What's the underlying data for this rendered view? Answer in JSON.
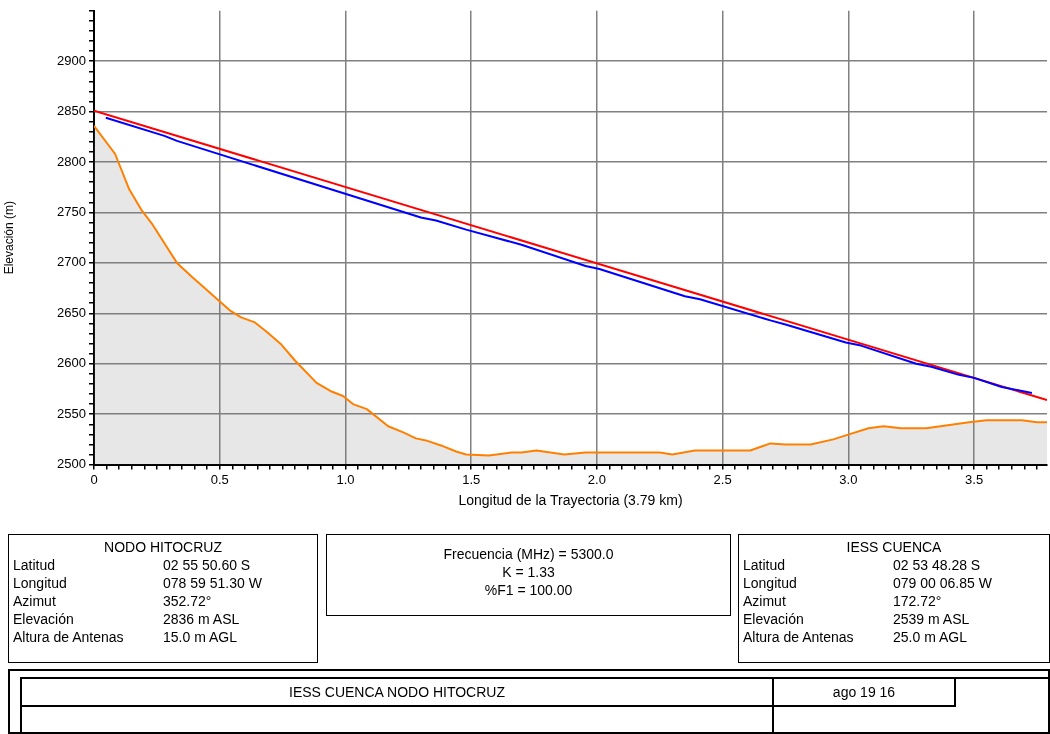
{
  "chart_data": {
    "type": "line",
    "xlabel": "Longitud de la Trayectoria (3.79 km)",
    "ylabel": "Elevación (m)",
    "grid": true,
    "legend": false,
    "xlim": [
      0,
      3.79
    ],
    "ylim": [
      2500,
      2950
    ],
    "xticks": [
      0,
      {
        "value": 0.05,
        "label": null
      },
      {
        "value": 0.1,
        "label": null
      },
      {
        "value": 0.15,
        "label": null
      },
      {
        "value": 0.2,
        "label": null
      },
      {
        "value": 0.25,
        "label": null
      },
      {
        "value": 0.3,
        "label": null
      },
      {
        "value": 0.35,
        "label": null
      },
      {
        "value": 0.4,
        "label": null
      },
      {
        "value": 0.45,
        "label": null
      },
      0.5,
      {
        "value": 0.55,
        "label": null
      },
      {
        "value": 0.6,
        "label": null
      },
      {
        "value": 0.65,
        "label": null
      },
      {
        "value": 0.7,
        "label": null
      },
      {
        "value": 0.75,
        "label": null
      },
      {
        "value": 0.8,
        "label": null
      },
      {
        "value": 0.85,
        "label": null
      },
      {
        "value": 0.9,
        "label": null
      },
      {
        "value": 0.95,
        "label": null
      },
      {
        "value": 1,
        "label": "1.0"
      },
      {
        "value": 1.05,
        "label": null
      },
      {
        "value": 1.1,
        "label": null
      },
      {
        "value": 1.15,
        "label": null
      },
      {
        "value": 1.2,
        "label": null
      },
      {
        "value": 1.25,
        "label": null
      },
      {
        "value": 1.3,
        "label": null
      },
      {
        "value": 1.35,
        "label": null
      },
      {
        "value": 1.4,
        "label": null
      },
      {
        "value": 1.45,
        "label": null
      },
      1.5,
      {
        "value": 1.55,
        "label": null
      },
      {
        "value": 1.6,
        "label": null
      },
      {
        "value": 1.65,
        "label": null
      },
      {
        "value": 1.7,
        "label": null
      },
      {
        "value": 1.75,
        "label": null
      },
      {
        "value": 1.8,
        "label": null
      },
      {
        "value": 1.85,
        "label": null
      },
      {
        "value": 1.9,
        "label": null
      },
      {
        "value": 1.95,
        "label": null
      },
      {
        "value": 2,
        "label": "2.0"
      },
      {
        "value": 2.05,
        "label": null
      },
      {
        "value": 2.1,
        "label": null
      },
      {
        "value": 2.15,
        "label": null
      },
      {
        "value": 2.2,
        "label": null
      },
      {
        "value": 2.25,
        "label": null
      },
      {
        "value": 2.3,
        "label": null
      },
      {
        "value": 2.35,
        "label": null
      },
      {
        "value": 2.4,
        "label": null
      },
      {
        "value": 2.45,
        "label": null
      },
      2.5,
      {
        "value": 2.55,
        "label": null
      },
      {
        "value": 2.6,
        "label": null
      },
      {
        "value": 2.65,
        "label": null
      },
      {
        "value": 2.7,
        "label": null
      },
      {
        "value": 2.75,
        "label": null
      },
      {
        "value": 2.8,
        "label": null
      },
      {
        "value": 2.85,
        "label": null
      },
      {
        "value": 2.9,
        "label": null
      },
      {
        "value": 2.95,
        "label": null
      },
      {
        "value": 3,
        "label": "3.0"
      },
      {
        "value": 3.05,
        "label": null
      },
      {
        "value": 3.1,
        "label": null
      },
      {
        "value": 3.15,
        "label": null
      },
      {
        "value": 3.2,
        "label": null
      },
      {
        "value": 3.25,
        "label": null
      },
      {
        "value": 3.3,
        "label": null
      },
      {
        "value": 3.35,
        "label": null
      },
      {
        "value": 3.4,
        "label": null
      },
      {
        "value": 3.45,
        "label": null
      },
      3.5,
      {
        "value": 3.55,
        "label": null
      },
      {
        "value": 3.6,
        "label": null
      },
      {
        "value": 3.65,
        "label": null
      },
      {
        "value": 3.7,
        "label": null
      },
      {
        "value": 3.75,
        "label": null
      }
    ],
    "yticks": [
      2500,
      {
        "value": 2510,
        "label": null
      },
      {
        "value": 2520,
        "label": null
      },
      {
        "value": 2530,
        "label": null
      },
      {
        "value": 2540,
        "label": null
      },
      2550,
      {
        "value": 2560,
        "label": null
      },
      {
        "value": 2570,
        "label": null
      },
      {
        "value": 2580,
        "label": null
      },
      {
        "value": 2590,
        "label": null
      },
      2600,
      {
        "value": 2610,
        "label": null
      },
      {
        "value": 2620,
        "label": null
      },
      {
        "value": 2630,
        "label": null
      },
      {
        "value": 2640,
        "label": null
      },
      2650,
      {
        "value": 2660,
        "label": null
      },
      {
        "value": 2670,
        "label": null
      },
      {
        "value": 2680,
        "label": null
      },
      {
        "value": 2690,
        "label": null
      },
      2700,
      {
        "value": 2710,
        "label": null
      },
      {
        "value": 2720,
        "label": null
      },
      {
        "value": 2730,
        "label": null
      },
      {
        "value": 2740,
        "label": null
      },
      2750,
      {
        "value": 2760,
        "label": null
      },
      {
        "value": 2770,
        "label": null
      },
      {
        "value": 2780,
        "label": null
      },
      {
        "value": 2790,
        "label": null
      },
      2800,
      {
        "value": 2810,
        "label": null
      },
      {
        "value": 2820,
        "label": null
      },
      {
        "value": 2830,
        "label": null
      },
      {
        "value": 2840,
        "label": null
      },
      2850,
      {
        "value": 2860,
        "label": null
      },
      {
        "value": 2870,
        "label": null
      },
      {
        "value": 2880,
        "label": null
      },
      {
        "value": 2890,
        "label": null
      },
      2900,
      {
        "value": 2910,
        "label": null
      },
      {
        "value": 2920,
        "label": null
      },
      {
        "value": 2930,
        "label": null
      },
      {
        "value": 2940,
        "label": null
      },
      {
        "value": 2950,
        "label": null
      }
    ],
    "series": [
      {
        "type": "area",
        "color": "#ff8000",
        "x": [
          0,
          0.084,
          0.14,
          0.19,
          0.23,
          0.33,
          0.39,
          0.44,
          0.49,
          0.54,
          0.585,
          0.64,
          0.69,
          0.745,
          0.8,
          0.885,
          0.94,
          0.99,
          1.03,
          1.085,
          1.17,
          1.23,
          1.28,
          1.32,
          1.38,
          1.44,
          1.48,
          1.57,
          1.66,
          1.7,
          1.76,
          1.87,
          1.955,
          2.25,
          2.3,
          2.39,
          2.61,
          2.69,
          2.75,
          2.85,
          2.94,
          2.99,
          3.08,
          3.14,
          3.21,
          3.31,
          3.48,
          3.55,
          3.69,
          3.75,
          3.79
        ],
        "values": [
          2836,
          2808,
          2773,
          2752,
          2739,
          2700,
          2686,
          2675,
          2664,
          2653,
          2646,
          2641,
          2631,
          2619,
          2603,
          2581,
          2573,
          2568,
          2560,
          2555,
          2538,
          2532,
          2526,
          2524,
          2519,
          2513,
          2510,
          2509,
          2512,
          2512,
          2514,
          2510,
          2512,
          2512,
          2510,
          2514,
          2514,
          2521,
          2520,
          2520,
          2525,
          2529,
          2536,
          2538,
          2536,
          2536,
          2542,
          2544,
          2544,
          2542,
          2542
        ]
      },
      {
        "type": "line",
        "color": "#0000ff",
        "x": [
          0.047,
          0.28,
          0.33,
          0.98,
          1.3,
          1.36,
          1.48,
          1.7,
          1.955,
          2.01,
          2.35,
          2.41,
          2.69,
          2.75,
          2.99,
          3.05,
          3.27,
          3.33,
          3.44,
          3.5,
          3.61,
          3.73
        ],
        "values": [
          2844,
          2826,
          2821,
          2770,
          2745,
          2742,
          2733,
          2718,
          2697,
          2694,
          2667,
          2664,
          2643,
          2639,
          2621,
          2618,
          2600,
          2597,
          2589,
          2586,
          2577,
          2571
        ]
      },
      {
        "type": "line",
        "color": "#ff0000",
        "x": [
          0,
          3.79
        ],
        "values": [
          2851,
          2564
        ]
      }
    ],
    "annotations": [
      "NODO HITOCRUZ",
      "Latitud",
      "02 55 50.60 S",
      "Longitud",
      "078 59 51.30 W",
      "Azimut",
      "352.72°",
      "Elevación",
      "2836 m ASL",
      "Altura de Antenas",
      "15.0 m AGL",
      "Frecuencia (MHz) = 5300.0",
      "K = 1.33",
      "%F1 = 100.00",
      "IESS CUENCA",
      "Latitud",
      "02 53 48.28 S",
      "Longitud",
      "079 00 06.85 W",
      "Azimut",
      "172.72°",
      "Elevación",
      "2539 m ASL",
      "Altura de Antenas",
      "25.0 m AGL",
      "IESS CUENCA NODO HITOCRUZ",
      "ago 19 16"
    ]
  }
}
